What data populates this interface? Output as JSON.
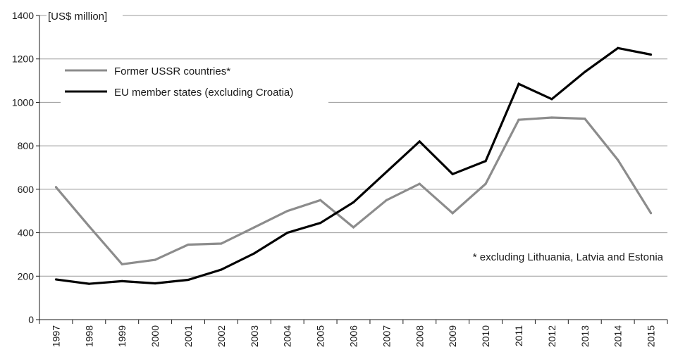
{
  "chart_data": {
    "type": "line",
    "y_unit_label": "[US$ million]",
    "ylim": [
      0,
      1400
    ],
    "y_ticks": [
      0,
      200,
      400,
      600,
      800,
      1000,
      1200,
      1400
    ],
    "categories": [
      "1997",
      "1998",
      "1999",
      "2000",
      "2001",
      "2002",
      "2003",
      "2004",
      "2005",
      "2006",
      "2007",
      "2008",
      "2009",
      "2010",
      "2011",
      "2012",
      "2013",
      "2014",
      "2015"
    ],
    "grid": "horizontal",
    "legend_position": "top-left",
    "series": [
      {
        "name": "Former USSR countries*",
        "color": "#8c8c8c",
        "values": [
          610,
          430,
          255,
          275,
          345,
          350,
          425,
          500,
          550,
          425,
          550,
          625,
          490,
          625,
          920,
          930,
          925,
          735,
          490
        ]
      },
      {
        "name": "EU member states (excluding Croatia)",
        "color": "#000000",
        "values": [
          185,
          165,
          177,
          167,
          183,
          230,
          305,
          400,
          445,
          540,
          680,
          820,
          670,
          730,
          1085,
          1015,
          1140,
          1250,
          1220
        ]
      }
    ],
    "annotation": "* excluding Lithuania, Latvia and Estonia"
  }
}
